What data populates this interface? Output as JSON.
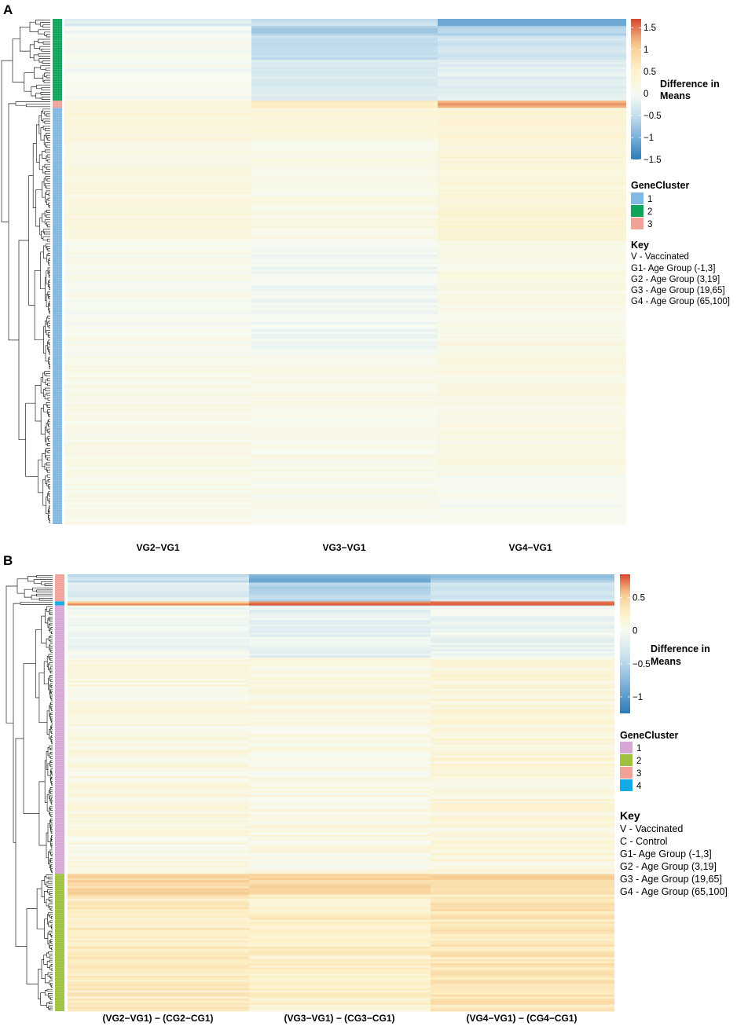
{
  "colors": {
    "scale": [
      "#2b7bba",
      "#79b0d8",
      "#c6dfee",
      "#f7fbf2",
      "#fdf0c6",
      "#f7c98e",
      "#d7462e"
    ],
    "clusterA": {
      "1": "#80b9e2",
      "2": "#10a35a",
      "3": "#f2a196"
    },
    "clusterB": {
      "1": "#d6a7d4",
      "2": "#9dc23d",
      "3": "#f2a196",
      "4": "#12aae6"
    }
  },
  "chart_data": [
    {
      "panel": "A",
      "type": "heatmap",
      "columns": [
        "VG2−VG1",
        "VG3−VG1",
        "VG4−VG1"
      ],
      "n_rows": 210,
      "color_range": [
        -1.5,
        1.7
      ],
      "colorbar": {
        "title_line1": "Difference in",
        "title_line2": "Means",
        "ticks": [
          {
            "value": 1.5,
            "label": "1.5"
          },
          {
            "value": 1,
            "label": "1"
          },
          {
            "value": 0.5,
            "label": "0.5"
          },
          {
            "value": 0,
            "label": "0"
          },
          {
            "value": -0.5,
            "label": "−0.5"
          },
          {
            "value": -1,
            "label": "−1"
          },
          {
            "value": -1.5,
            "label": "−1.5"
          }
        ]
      },
      "gene_cluster_legend": {
        "title": "GeneCluster",
        "items": [
          {
            "id": "1",
            "label": "1"
          },
          {
            "id": "2",
            "label": "2"
          },
          {
            "id": "3",
            "label": "3"
          }
        ]
      },
      "row_clusters": [
        {
          "cluster": "2",
          "rows": 34
        },
        {
          "cluster": "3",
          "rows": 3
        },
        {
          "cluster": "1",
          "rows": 173
        }
      ],
      "row_segments": [
        {
          "rows": 3,
          "values": [
            -0.3,
            -0.5,
            -1.1
          ]
        },
        {
          "rows": 4,
          "values": [
            -0.1,
            -0.7,
            -0.6
          ]
        },
        {
          "rows": 10,
          "values": [
            0.0,
            -0.5,
            -0.4
          ]
        },
        {
          "rows": 17,
          "values": [
            0.0,
            -0.3,
            -0.2
          ]
        },
        {
          "rows": 3,
          "values": [
            0.35,
            0.55,
            1.3
          ]
        },
        {
          "rows": 13,
          "values": [
            0.3,
            0.3,
            0.35
          ]
        },
        {
          "rows": 30,
          "values": [
            0.2,
            0.15,
            0.3
          ]
        },
        {
          "rows": 12,
          "values": [
            0.25,
            0.15,
            0.4
          ]
        },
        {
          "rows": 48,
          "values": [
            0.05,
            -0.05,
            0.15
          ]
        },
        {
          "rows": 50,
          "values": [
            0.12,
            0.1,
            0.2
          ]
        },
        {
          "rows": 20,
          "values": [
            0.1,
            0.05,
            0.0
          ]
        }
      ],
      "key": {
        "title": "Key",
        "lines": [
          "V - Vaccinated",
          "G1- Age Group (-1,3]",
          "G2 - Age Group (3,19]",
          "G3 - Age Group (19,65]",
          "G4 - Age Group (65,100]"
        ]
      }
    },
    {
      "panel": "B",
      "type": "heatmap",
      "columns": [
        "(VG2−VG1) − (CG2−CG1)",
        "(VG3−VG1) − (CG3−CG1)",
        "(VG4−VG1) − (CG4−CG1)"
      ],
      "n_rows": 210,
      "color_range": [
        -1.25,
        0.85
      ],
      "colorbar": {
        "title_line1": "Difference in",
        "title_line2": "Means",
        "ticks": [
          {
            "value": 0.5,
            "label": "0.5"
          },
          {
            "value": 0,
            "label": "0"
          },
          {
            "value": -0.5,
            "label": "−0.5"
          },
          {
            "value": -1,
            "label": "−1"
          }
        ]
      },
      "gene_cluster_legend": {
        "title": "GeneCluster",
        "items": [
          {
            "id": "1",
            "label": "1"
          },
          {
            "id": "2",
            "label": "2"
          },
          {
            "id": "3",
            "label": "3"
          },
          {
            "id": "4",
            "label": "4"
          }
        ]
      },
      "row_clusters": [
        {
          "cluster": "3",
          "rows": 13
        },
        {
          "cluster": "4",
          "rows": 2
        },
        {
          "cluster": "1",
          "rows": 129
        },
        {
          "cluster": "2",
          "rows": 66
        }
      ],
      "row_segments": [
        {
          "rows": 4,
          "values": [
            -0.4,
            -0.8,
            -0.6
          ]
        },
        {
          "rows": 9,
          "values": [
            -0.2,
            -0.5,
            -0.3
          ]
        },
        {
          "rows": 2,
          "values": [
            0.6,
            0.8,
            0.7
          ]
        },
        {
          "rows": 25,
          "values": [
            -0.05,
            -0.15,
            -0.1
          ]
        },
        {
          "rows": 104,
          "values": [
            0.1,
            0.08,
            0.15
          ]
        },
        {
          "rows": 10,
          "values": [
            0.45,
            0.45,
            0.45
          ]
        },
        {
          "rows": 56,
          "values": [
            0.3,
            0.25,
            0.35
          ]
        }
      ],
      "key": {
        "title": "Key",
        "lines": [
          "V - Vaccinated",
          "C - Control",
          "G1- Age Group (-1,3]",
          "G2 - Age Group (3,19]",
          "G3 - Age Group (19,65]",
          "G4 - Age Group (65,100]"
        ]
      }
    }
  ]
}
